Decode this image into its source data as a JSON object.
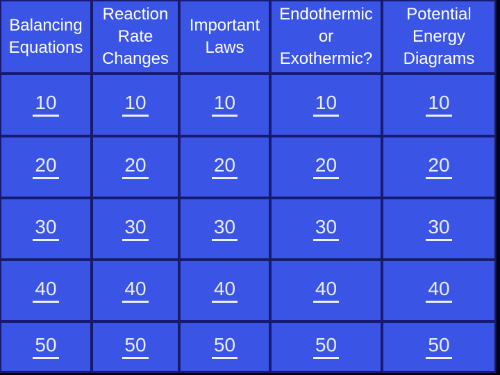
{
  "board": {
    "title": "Jeopardy review board",
    "background_color": "#000000",
    "cell_color": "#3A55E6",
    "border_color": "#171A6E",
    "header_text_color": "#FFFFFF",
    "value_text_color": "#ECECFA",
    "categories": [
      {
        "label": "Balancing\nEquations",
        "values": [
          "10",
          "20",
          "30",
          "40",
          "50"
        ]
      },
      {
        "label": "Reaction\nRate\nChanges",
        "values": [
          "10",
          "20",
          "30",
          "40",
          "50"
        ]
      },
      {
        "label": "Important\nLaws",
        "values": [
          "10",
          "20",
          "30",
          "40",
          "50"
        ]
      },
      {
        "label": "Endothermic\nor\nExothermic?",
        "values": [
          "10",
          "20",
          "30",
          "40",
          "50"
        ]
      },
      {
        "label": "Potential\nEnergy\nDiagrams",
        "values": [
          "10",
          "20",
          "30",
          "40",
          "50"
        ]
      }
    ]
  }
}
